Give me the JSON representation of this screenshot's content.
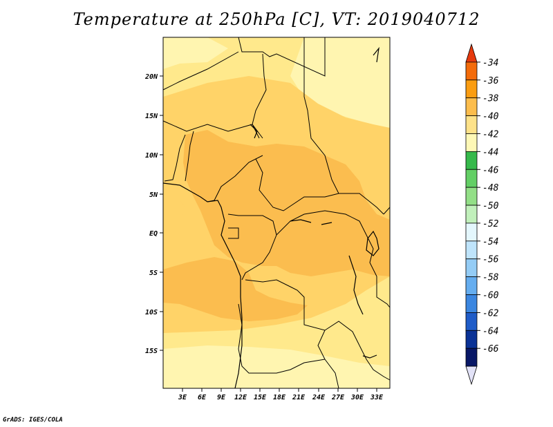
{
  "title": "Temperature at 250hPa [C], VT: 2019040712",
  "credit": "GrADS: IGES/COLA",
  "map": {
    "lat_labels": [
      "20N",
      "15N",
      "10N",
      "5N",
      "EQ",
      "5S",
      "10S",
      "15S"
    ],
    "lon_labels": [
      "3E",
      "6E",
      "9E",
      "12E",
      "15E",
      "18E",
      "21E",
      "24E",
      "27E",
      "30E",
      "33E"
    ],
    "fill_colors": {
      "lightest": "#fff5b0",
      "light": "#ffe98c",
      "mid": "#ffd368",
      "dark": "#fbbd4f"
    }
  },
  "colorbar": {
    "labels": [
      "-34",
      "-36",
      "-38",
      "-40",
      "-42",
      "-44",
      "-46",
      "-48",
      "-50",
      "-52",
      "-54",
      "-56",
      "-58",
      "-60",
      "-62",
      "-64",
      "-66"
    ],
    "colors": [
      "#e63a0e",
      "#f36b0a",
      "#fa9d12",
      "#fcbd4d",
      "#fee289",
      "#fef8b6",
      "#36b94b",
      "#63cf65",
      "#93df87",
      "#c1f0bb",
      "#e4f7fd",
      "#bfe4fb",
      "#94ccf5",
      "#65adef",
      "#3b86e0",
      "#1f5cc8",
      "#0a3296",
      "#081766",
      "#e2e2f7"
    ]
  }
}
